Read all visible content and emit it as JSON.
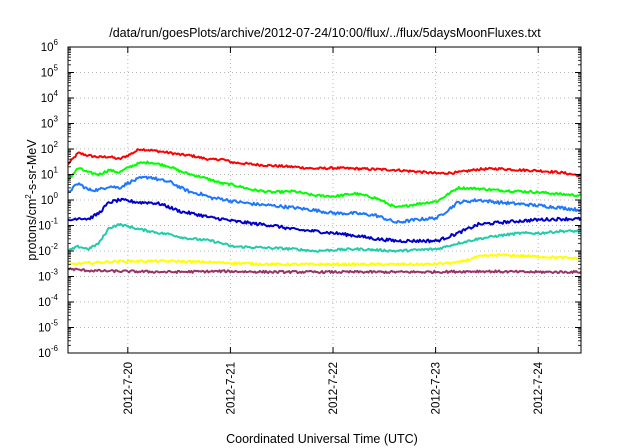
{
  "chart_data": {
    "type": "line",
    "title": "/data/run/goesPlots/archive/2012-07-24/10:00/flux/../flux/5daysMoonFluxes.txt",
    "xlabel": "Coordinated Universal Time (UTC)",
    "ylabel": {
      "prefix": "protons/cm",
      "sup": "2",
      "suffix": "-s-sr-MeV"
    },
    "yscale": "log",
    "ylim": [
      1e-06,
      1000000.0
    ],
    "xlim_days": [
      "2012-07-19 10:00",
      "2012-07-24 10:00"
    ],
    "grid": true,
    "legend": "none",
    "y_ticks": [
      {
        "value": 1000000.0,
        "base": "10",
        "exp": "6"
      },
      {
        "value": 100000.0,
        "base": "10",
        "exp": "5"
      },
      {
        "value": 10000.0,
        "base": "10",
        "exp": "4"
      },
      {
        "value": 1000.0,
        "base": "10",
        "exp": "3"
      },
      {
        "value": 100.0,
        "base": "10",
        "exp": "2"
      },
      {
        "value": 10.0,
        "base": "10",
        "exp": "1"
      },
      {
        "value": 1.0,
        "base": "10",
        "exp": "0"
      },
      {
        "value": 0.1,
        "base": "10",
        "exp": "-1"
      },
      {
        "value": 0.01,
        "base": "10",
        "exp": "-2"
      },
      {
        "value": 0.001,
        "base": "10",
        "exp": "-3"
      },
      {
        "value": 0.0001,
        "base": "10",
        "exp": "-4"
      },
      {
        "value": 1e-05,
        "base": "10",
        "exp": "-5"
      },
      {
        "value": 1e-06,
        "base": "10",
        "exp": "-6"
      }
    ],
    "x_ticks": [
      {
        "t": 0.583,
        "label": "2012-7-20"
      },
      {
        "t": 1.583,
        "label": "2012-7-21"
      },
      {
        "t": 2.583,
        "label": "2012-7-22"
      },
      {
        "t": 3.583,
        "label": "2012-7-23"
      },
      {
        "t": 4.583,
        "label": "2012-7-24"
      }
    ],
    "series": [
      {
        "color": "#ff0000",
        "t": [
          0.0,
          0.1,
          0.2,
          0.3,
          0.4,
          0.5,
          0.6,
          0.7,
          0.8,
          0.9,
          1.0,
          1.1,
          1.2,
          1.3,
          1.4,
          1.5,
          1.6,
          1.8,
          2.0,
          2.2,
          2.4,
          2.6,
          2.8,
          3.0,
          3.2,
          3.4,
          3.6,
          3.8,
          4.0,
          4.2,
          4.4,
          4.6,
          4.8,
          5.0
        ],
        "values": [
          25,
          70,
          55,
          48,
          50,
          40,
          60,
          100,
          90,
          80,
          70,
          60,
          55,
          45,
          38,
          40,
          30,
          25,
          22,
          20,
          17,
          18,
          17,
          16,
          15,
          13,
          11,
          12,
          16,
          17,
          15,
          14,
          12,
          9
        ]
      },
      {
        "color": "#00ff00",
        "t": [
          0.0,
          0.1,
          0.2,
          0.3,
          0.4,
          0.5,
          0.6,
          0.7,
          0.8,
          0.9,
          1.0,
          1.1,
          1.2,
          1.3,
          1.4,
          1.5,
          1.6,
          1.8,
          2.0,
          2.2,
          2.4,
          2.6,
          2.8,
          3.0,
          3.2,
          3.4,
          3.6,
          3.8,
          4.0,
          4.2,
          4.4,
          4.6,
          4.8,
          5.0
        ],
        "values": [
          6,
          18,
          12,
          10,
          15,
          12,
          20,
          28,
          30,
          25,
          20,
          13,
          10,
          8,
          6,
          4.5,
          4,
          2.5,
          2,
          2.2,
          1.5,
          1.4,
          1.8,
          1.2,
          0.5,
          0.7,
          0.9,
          3.0,
          2.8,
          2.4,
          2.2,
          2.0,
          1.7,
          1.5
        ]
      },
      {
        "color": "#1e78ff",
        "t": [
          0.0,
          0.1,
          0.2,
          0.3,
          0.4,
          0.5,
          0.6,
          0.7,
          0.8,
          0.9,
          1.0,
          1.1,
          1.2,
          1.3,
          1.4,
          1.5,
          1.6,
          1.8,
          2.0,
          2.2,
          2.4,
          2.6,
          2.8,
          3.0,
          3.2,
          3.4,
          3.6,
          3.8,
          4.0,
          4.2,
          4.4,
          4.6,
          4.8,
          5.0
        ],
        "values": [
          2.0,
          4.5,
          2.5,
          2.5,
          3.5,
          3.0,
          5,
          7,
          8,
          6,
          5,
          3,
          2,
          1.7,
          1.2,
          1.1,
          0.9,
          0.7,
          0.6,
          0.5,
          0.4,
          0.3,
          0.3,
          0.25,
          0.13,
          0.17,
          0.2,
          0.8,
          1.0,
          0.8,
          0.7,
          0.6,
          0.5,
          0.4
        ]
      },
      {
        "color": "#0000cc",
        "t": [
          0.0,
          0.1,
          0.2,
          0.3,
          0.4,
          0.5,
          0.6,
          0.7,
          0.8,
          0.9,
          1.0,
          1.1,
          1.2,
          1.3,
          1.4,
          1.5,
          1.6,
          1.8,
          2.0,
          2.2,
          2.4,
          2.6,
          2.8,
          3.0,
          3.2,
          3.4,
          3.6,
          3.8,
          4.0,
          4.2,
          4.4,
          4.6,
          4.8,
          5.0
        ],
        "values": [
          0.15,
          0.2,
          0.18,
          0.3,
          0.8,
          1.0,
          0.9,
          0.8,
          0.8,
          0.7,
          0.5,
          0.35,
          0.3,
          0.25,
          0.2,
          0.18,
          0.15,
          0.12,
          0.1,
          0.07,
          0.06,
          0.05,
          0.04,
          0.03,
          0.025,
          0.025,
          0.025,
          0.05,
          0.11,
          0.13,
          0.15,
          0.17,
          0.18,
          0.18
        ]
      },
      {
        "color": "#22ccaa",
        "t": [
          0.0,
          0.1,
          0.2,
          0.3,
          0.4,
          0.5,
          0.6,
          0.7,
          0.8,
          0.9,
          1.0,
          1.1,
          1.2,
          1.3,
          1.4,
          1.5,
          1.6,
          1.8,
          2.0,
          2.2,
          2.4,
          2.6,
          2.8,
          3.0,
          3.2,
          3.4,
          3.6,
          3.8,
          4.0,
          4.2,
          4.4,
          4.6,
          4.8,
          5.0
        ],
        "values": [
          0.01,
          0.015,
          0.012,
          0.02,
          0.08,
          0.11,
          0.09,
          0.07,
          0.06,
          0.05,
          0.045,
          0.035,
          0.03,
          0.028,
          0.025,
          0.02,
          0.015,
          0.014,
          0.013,
          0.012,
          0.01,
          0.011,
          0.012,
          0.011,
          0.01,
          0.011,
          0.012,
          0.02,
          0.03,
          0.04,
          0.05,
          0.05,
          0.06,
          0.06
        ]
      },
      {
        "color": "#ffff00",
        "t": [
          0.0,
          0.5,
          1.0,
          1.5,
          2.0,
          2.5,
          3.0,
          3.5,
          3.8,
          4.0,
          4.2,
          4.4,
          4.6,
          4.8,
          5.0
        ],
        "values": [
          0.003,
          0.004,
          0.004,
          0.0035,
          0.003,
          0.003,
          0.003,
          0.003,
          0.0035,
          0.006,
          0.007,
          0.0065,
          0.006,
          0.0055,
          0.005
        ]
      },
      {
        "color": "#993366",
        "t": [
          0.0,
          0.2,
          0.5,
          1.0,
          1.5,
          2.0,
          2.5,
          3.0,
          3.5,
          4.0,
          4.5,
          5.0
        ],
        "values": [
          0.002,
          0.0017,
          0.0016,
          0.0015,
          0.0016,
          0.0015,
          0.0015,
          0.0015,
          0.0015,
          0.0016,
          0.0015,
          0.0015
        ]
      }
    ]
  }
}
